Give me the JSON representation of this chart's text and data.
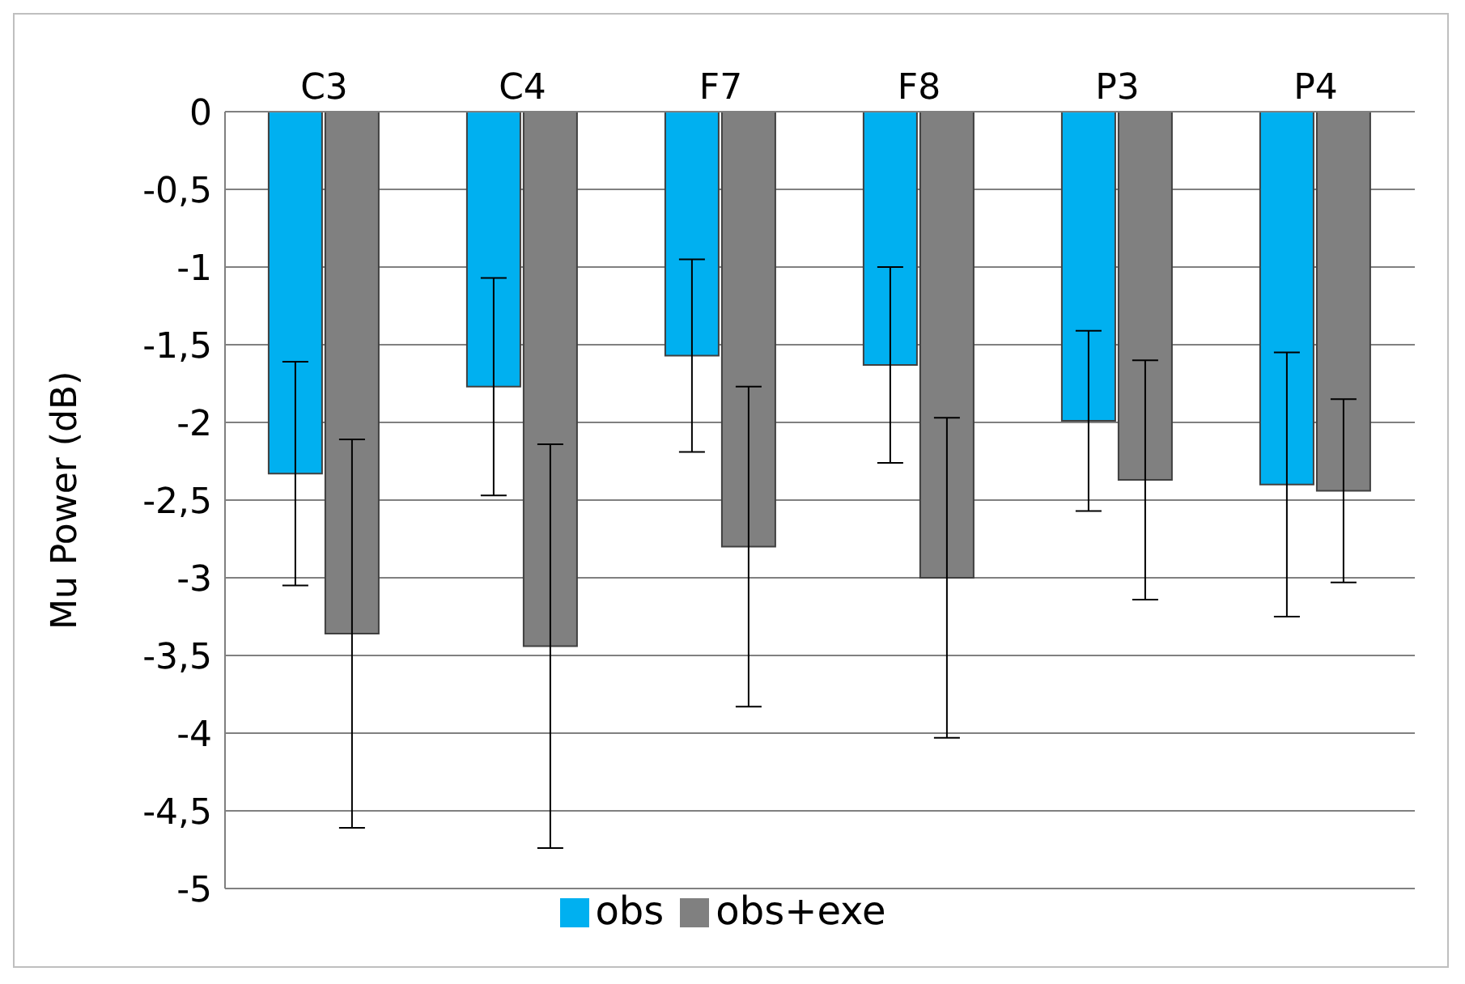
{
  "chart_data": {
    "type": "bar",
    "ylabel": "Mu Power (dB)",
    "categories": [
      "C3",
      "C4",
      "F7",
      "F8",
      "P3",
      "P4"
    ],
    "series": [
      {
        "name": "obs",
        "color": "#00b0f0",
        "values": [
          -2.33,
          -1.77,
          -1.57,
          -1.63,
          -1.99,
          -2.4
        ],
        "errors": [
          0.72,
          0.7,
          0.62,
          0.63,
          0.58,
          0.85
        ]
      },
      {
        "name": "obs+exe",
        "color": "#808080",
        "values": [
          -3.36,
          -3.44,
          -2.8,
          -3.0,
          -2.37,
          -2.44
        ],
        "errors": [
          1.25,
          1.3,
          1.03,
          1.03,
          0.77,
          0.59
        ]
      }
    ],
    "ylim": [
      -5,
      0
    ],
    "yticks": [
      0,
      {
        "value": -0.5,
        "label": "-0,5"
      },
      -1,
      {
        "value": -1.5,
        "label": "-1,5"
      },
      -2,
      {
        "value": -2.5,
        "label": "-2,5"
      },
      -3,
      {
        "value": -3.5,
        "label": "-3,5"
      },
      -4,
      {
        "value": -4.5,
        "label": "-4,5"
      },
      -5
    ],
    "grid": "y",
    "legend": "bottom"
  }
}
